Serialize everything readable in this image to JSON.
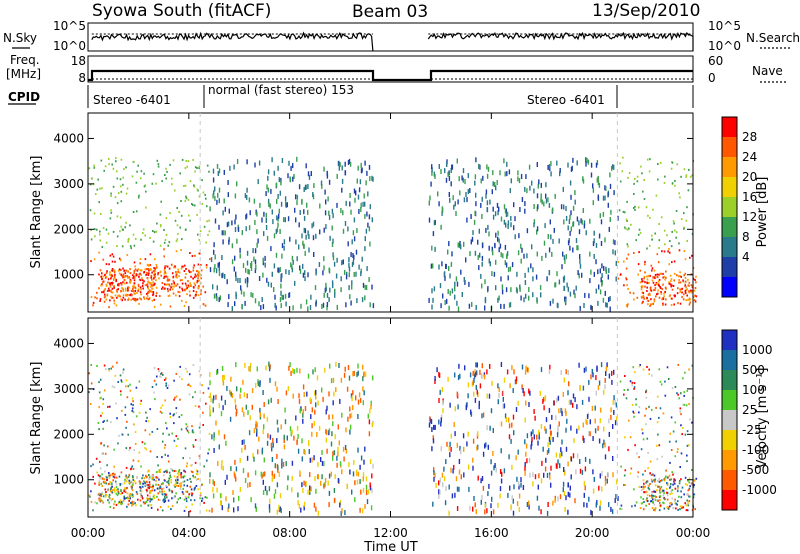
{
  "header": {
    "station": "Syowa South (fitACF)",
    "beam": "Beam 03",
    "date": "13/Sep/2010"
  },
  "panels": {
    "noise": {
      "left_label": "N.Sky",
      "left_ticks": [
        "10^5",
        "10^0"
      ],
      "right_ticks": [
        "10^5",
        "10^0"
      ],
      "right_label": "N.Search"
    },
    "freq": {
      "left_label_1": "Freq.",
      "left_label_2": "[MHz]",
      "left_ticks": [
        "18",
        "8"
      ],
      "right_ticks": [
        "60",
        "0"
      ],
      "right_label": "Nave"
    },
    "cpid": {
      "label": "CPID",
      "modes": [
        "Stereo -6401",
        "normal (fast stereo) 153",
        "Stereo -6401"
      ]
    }
  },
  "chart_data": [
    {
      "type": "scatter",
      "title": "",
      "xlabel": "Time UT",
      "ylabel": "Slant Range [km]",
      "x_ticks": [
        "00:00",
        "04:00",
        "08:00",
        "12:00",
        "16:00",
        "20:00",
        "00:00"
      ],
      "x_range_hours": [
        0,
        24
      ],
      "y_ticks": [
        "1000",
        "2000",
        "3000",
        "4000"
      ],
      "y_range_km": [
        180,
        4560
      ],
      "data_gap_hours": [
        11.3,
        13.5
      ],
      "mode_change_hours": [
        4.45,
        21.0
      ],
      "colorbar": {
        "label": "Power [dB]",
        "ticks": [
          "28",
          "24",
          "20",
          "16",
          "12",
          "8",
          "4"
        ],
        "colors": [
          "#0000ff",
          "#1e3fa8",
          "#2a7a8c",
          "#3aa050",
          "#9ad028",
          "#f0d000",
          "#ff9a00",
          "#ff5800",
          "#ff0000"
        ]
      }
    },
    {
      "type": "scatter",
      "title": "",
      "xlabel": "Time UT",
      "ylabel": "Slant Range [km]",
      "x_ticks": [
        "00:00",
        "04:00",
        "08:00",
        "12:00",
        "16:00",
        "20:00",
        "00:00"
      ],
      "x_range_hours": [
        0,
        24
      ],
      "y_ticks": [
        "1000",
        "2000",
        "3000",
        "4000"
      ],
      "y_range_km": [
        180,
        4560
      ],
      "data_gap_hours": [
        11.3,
        13.5
      ],
      "mode_change_hours": [
        4.45,
        21.0
      ],
      "colorbar": {
        "label": "Velocity [m s⁻¹]",
        "ticks": [
          "1000",
          "500",
          "100",
          "25",
          "-25",
          "-100",
          "-500",
          "-1000"
        ],
        "colors": [
          "#2030c0",
          "#1a6fa0",
          "#2c8a58",
          "#4cc828",
          "#c8c8c8",
          "#f0d000",
          "#ff9a00",
          "#ff5a00",
          "#ff0000"
        ]
      }
    }
  ]
}
